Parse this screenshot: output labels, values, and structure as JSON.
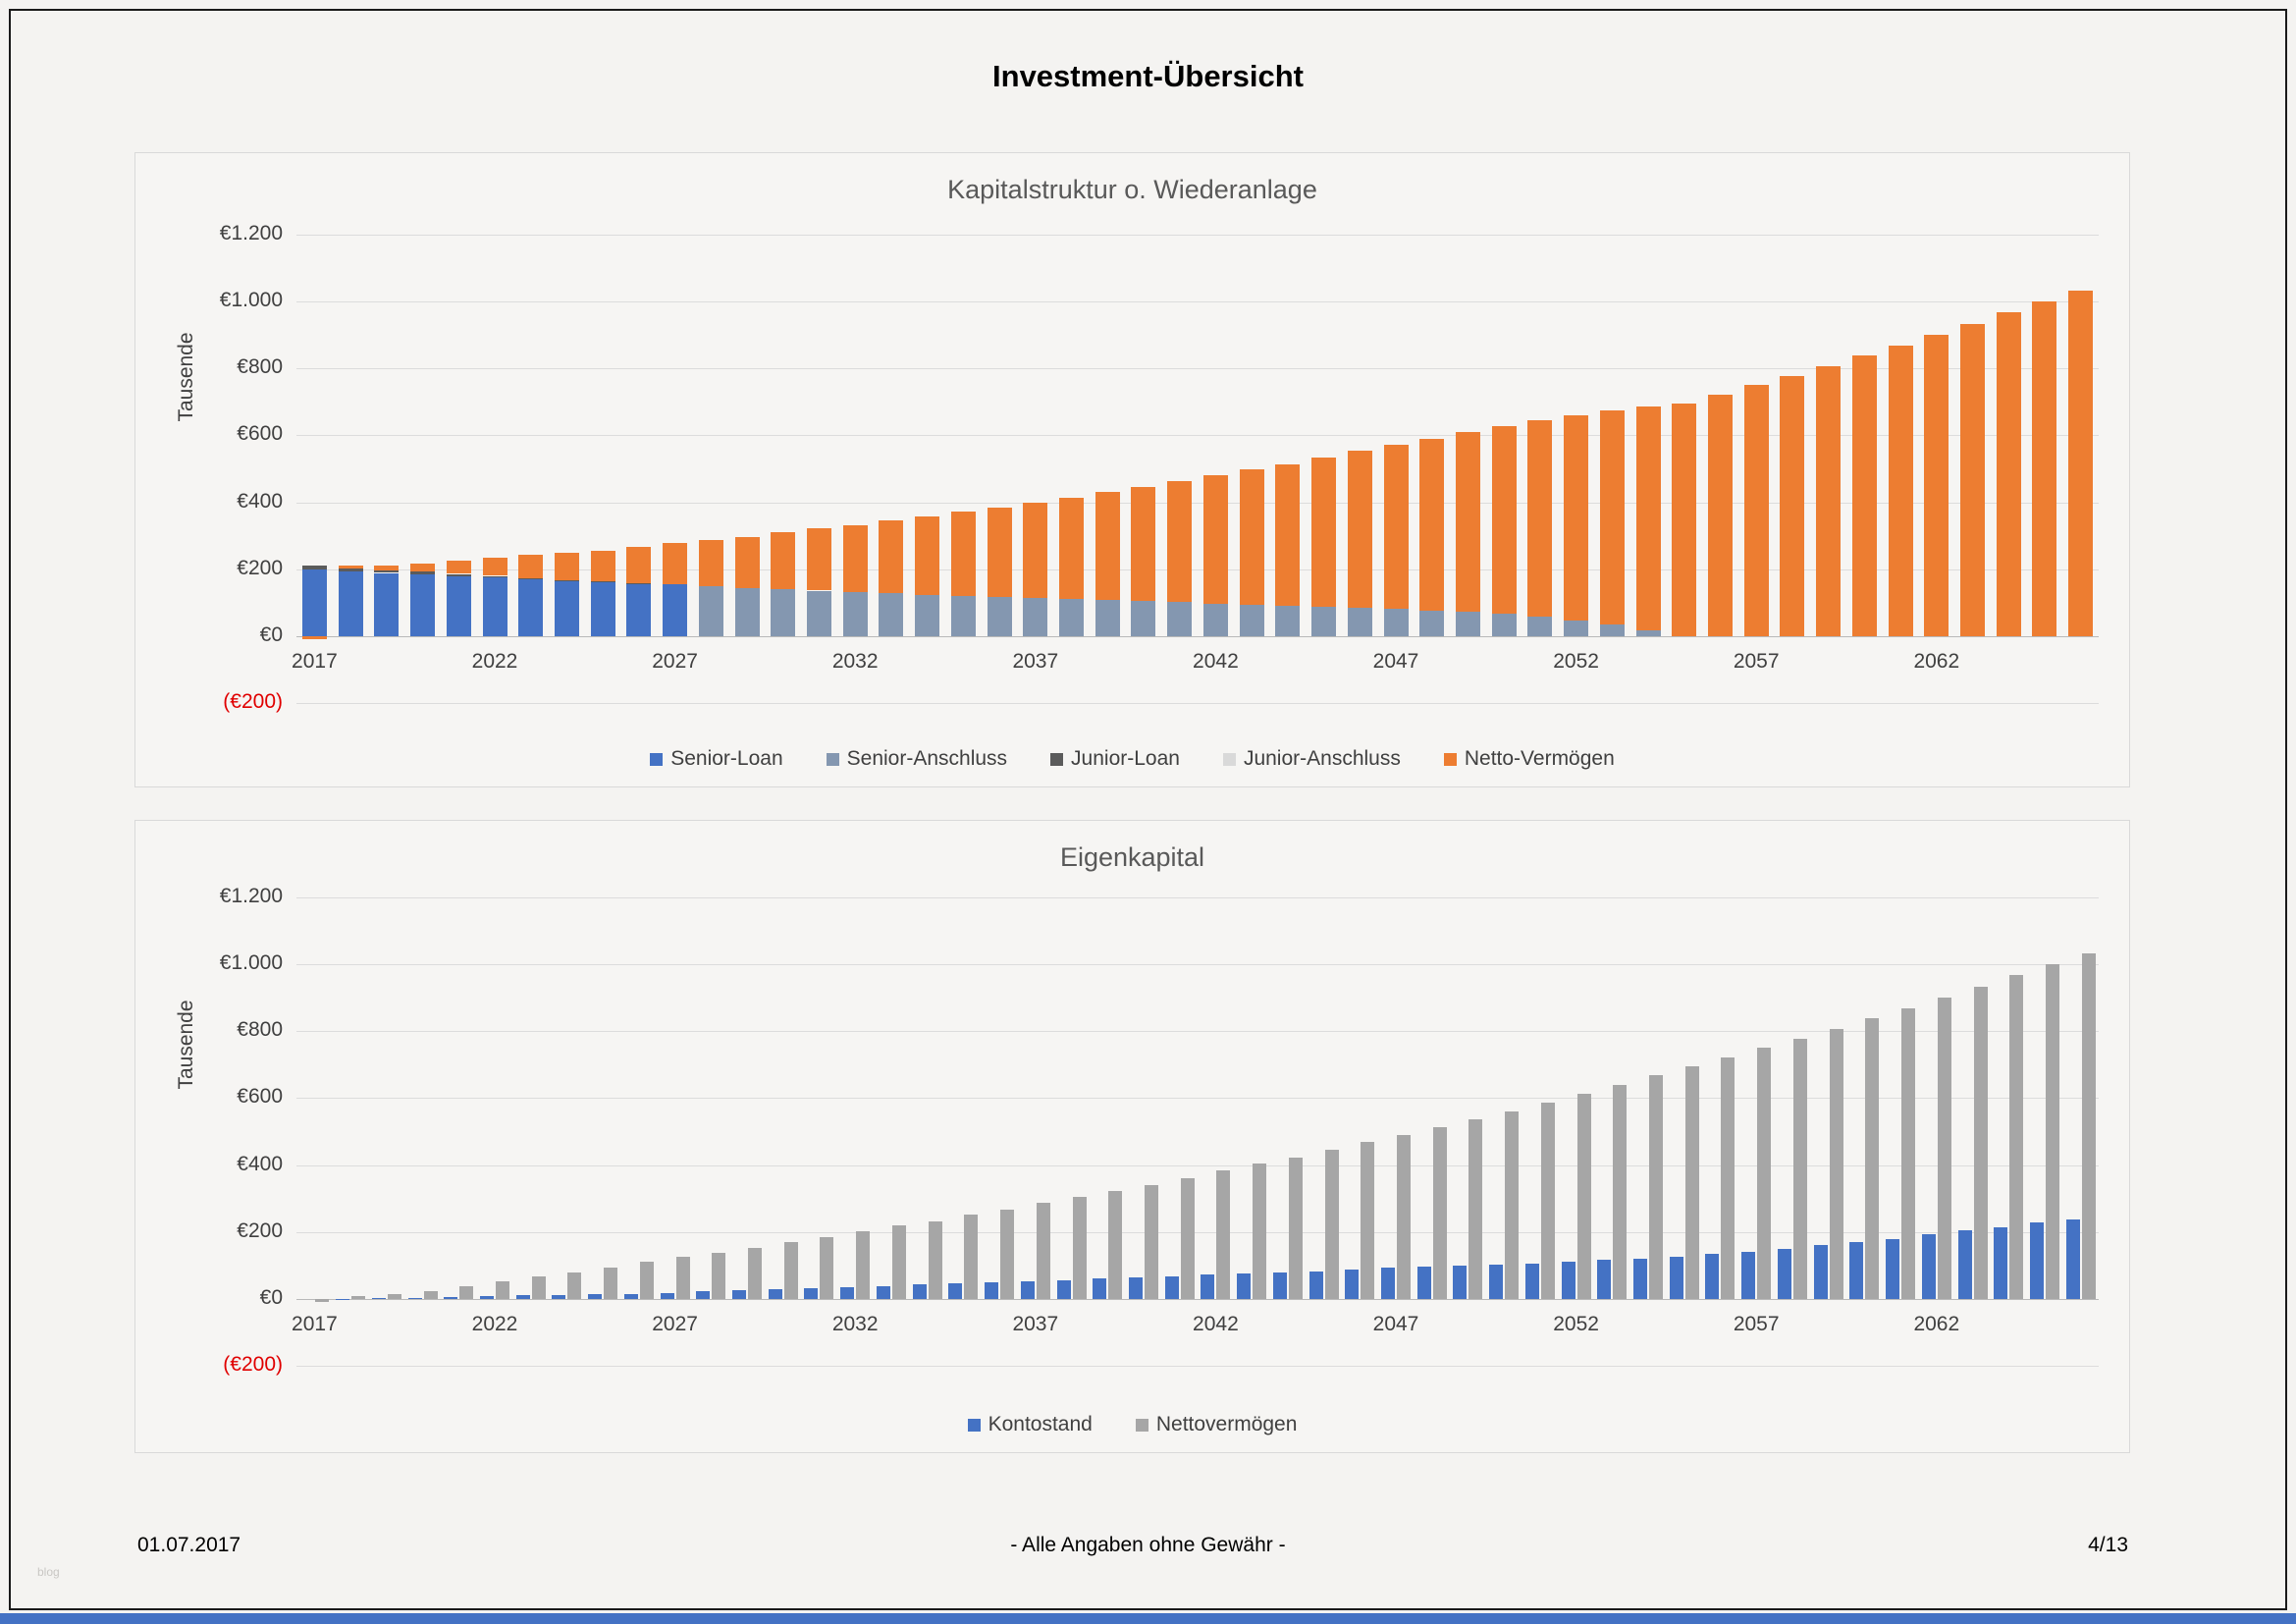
{
  "page": {
    "title": "Investment-Übersicht",
    "footer_date": "01.07.2017",
    "footer_center": "- Alle Angaben ohne Gewähr -",
    "footer_page": "4/13",
    "watermark": "blog",
    "accent_color": "#4472C4"
  },
  "axis": {
    "y_label": "Tausende",
    "y_ticks": [
      {
        "label": "€1.200",
        "value": 1200
      },
      {
        "label": "€1.000",
        "value": 1000
      },
      {
        "label": "€800",
        "value": 800
      },
      {
        "label": "€600",
        "value": 600
      },
      {
        "label": "€400",
        "value": 400
      },
      {
        "label": "€200",
        "value": 200
      },
      {
        "label": "€0",
        "value": 0
      },
      {
        "label": "(€200)",
        "value": -200,
        "negative": true
      }
    ],
    "x_tick_labels": [
      "2017",
      "2022",
      "2027",
      "2032",
      "2037",
      "2042",
      "2047",
      "2052",
      "2057",
      "2062"
    ],
    "negative_label_color": "#e00000"
  },
  "chart_data": [
    {
      "type": "bar",
      "variant": "stacked",
      "title": "Kapitalstruktur o. Wiederanlage",
      "ylabel": "Tausende",
      "ylim": [
        -200,
        1200
      ],
      "grid": true,
      "legend_position": "bottom",
      "units": "EUR thousands",
      "categories": [
        2017,
        2018,
        2019,
        2020,
        2021,
        2022,
        2023,
        2024,
        2025,
        2026,
        2027,
        2028,
        2029,
        2030,
        2031,
        2032,
        2033,
        2034,
        2035,
        2036,
        2037,
        2038,
        2039,
        2040,
        2041,
        2042,
        2043,
        2044,
        2045,
        2046,
        2047,
        2048,
        2049,
        2050,
        2051,
        2052,
        2053,
        2054,
        2055,
        2056,
        2057,
        2058,
        2059,
        2060,
        2061,
        2062,
        2063,
        2064,
        2065,
        2066
      ],
      "series": [
        {
          "name": "Senior-Loan",
          "color": "#4472C4",
          "values": [
            200,
            193,
            189,
            185,
            180,
            175,
            170,
            165,
            161,
            157,
            154,
            0,
            0,
            0,
            0,
            0,
            0,
            0,
            0,
            0,
            0,
            0,
            0,
            0,
            0,
            0,
            0,
            0,
            0,
            0,
            0,
            0,
            0,
            0,
            0,
            0,
            0,
            0,
            0,
            0,
            0,
            0,
            0,
            0,
            0,
            0,
            0,
            0,
            0,
            0
          ]
        },
        {
          "name": "Senior-Anschluss",
          "color": "#8497B0",
          "values": [
            0,
            0,
            0,
            0,
            0,
            0,
            0,
            0,
            0,
            0,
            0,
            148,
            144,
            141,
            136,
            131,
            128,
            124,
            121,
            117,
            114,
            111,
            107,
            104,
            101,
            97,
            94,
            91,
            88,
            84,
            81,
            77,
            72,
            66,
            58,
            48,
            35,
            18,
            0,
            0,
            0,
            0,
            0,
            0,
            0,
            0,
            0,
            0,
            0,
            0
          ]
        },
        {
          "name": "Junior-Loan",
          "color": "#5B5B5B",
          "values": [
            10,
            9,
            8,
            7,
            6,
            5,
            4,
            3,
            2,
            1,
            0,
            0,
            0,
            0,
            0,
            0,
            0,
            0,
            0,
            0,
            0,
            0,
            0,
            0,
            0,
            0,
            0,
            0,
            0,
            0,
            0,
            0,
            0,
            0,
            0,
            0,
            0,
            0,
            0,
            0,
            0,
            0,
            0,
            0,
            0,
            0,
            0,
            0,
            0,
            0
          ]
        },
        {
          "name": "Junior-Anschluss",
          "color": "#D9D9D9",
          "values": [
            0,
            0,
            0,
            0,
            0,
            0,
            0,
            0,
            0,
            0,
            0,
            0,
            0,
            0,
            0,
            0,
            0,
            0,
            0,
            0,
            0,
            0,
            0,
            0,
            0,
            0,
            0,
            0,
            0,
            0,
            0,
            0,
            0,
            0,
            0,
            0,
            0,
            0,
            0,
            0,
            0,
            0,
            0,
            0,
            0,
            0,
            0,
            0,
            0,
            0
          ]
        },
        {
          "name": "Netto-Vermögen",
          "color": "#ED7D31",
          "values": [
            -10,
            8,
            15,
            24,
            39,
            54,
            68,
            80,
            93,
            110,
            125,
            139,
            152,
            170,
            186,
            201,
            219,
            233,
            252,
            268,
            286,
            304,
            323,
            341,
            361,
            383,
            405,
            421,
            447,
            469,
            491,
            514,
            538,
            561,
            588,
            612,
            639,
            669,
            695,
            722,
            752,
            778,
            806,
            838,
            869,
            900,
            932,
            967,
            1000,
            1034
          ]
        }
      ]
    },
    {
      "type": "bar",
      "variant": "grouped",
      "title": "Eigenkapital",
      "ylabel": "Tausende",
      "ylim": [
        -200,
        1200
      ],
      "grid": true,
      "legend_position": "bottom",
      "units": "EUR thousands",
      "categories": [
        2017,
        2018,
        2019,
        2020,
        2021,
        2022,
        2023,
        2024,
        2025,
        2026,
        2027,
        2028,
        2029,
        2030,
        2031,
        2032,
        2033,
        2034,
        2035,
        2036,
        2037,
        2038,
        2039,
        2040,
        2041,
        2042,
        2043,
        2044,
        2045,
        2046,
        2047,
        2048,
        2049,
        2050,
        2051,
        2052,
        2053,
        2054,
        2055,
        2056,
        2057,
        2058,
        2059,
        2060,
        2061,
        2062,
        2063,
        2064,
        2065,
        2066
      ],
      "series": [
        {
          "name": "Kontostand",
          "color": "#4472C4",
          "values": [
            0,
            1,
            3,
            4,
            7,
            9,
            11,
            12,
            14,
            15,
            17,
            24,
            27,
            30,
            31,
            34,
            37,
            43,
            47,
            50,
            53,
            56,
            61,
            64,
            67,
            73,
            77,
            80,
            83,
            89,
            93,
            96,
            100,
            102,
            106,
            112,
            116,
            120,
            126,
            136,
            141,
            150,
            160,
            170,
            180,
            192,
            205,
            215,
            228,
            238
          ]
        },
        {
          "name": "Nettovermögen",
          "color": "#A6A6A6",
          "values": [
            -10,
            8,
            15,
            24,
            39,
            54,
            68,
            80,
            93,
            110,
            125,
            139,
            152,
            170,
            186,
            201,
            219,
            233,
            252,
            268,
            286,
            304,
            323,
            341,
            361,
            383,
            405,
            421,
            447,
            469,
            491,
            514,
            538,
            561,
            588,
            612,
            639,
            669,
            695,
            722,
            752,
            778,
            806,
            838,
            869,
            900,
            932,
            967,
            1000,
            1034
          ]
        }
      ]
    }
  ]
}
